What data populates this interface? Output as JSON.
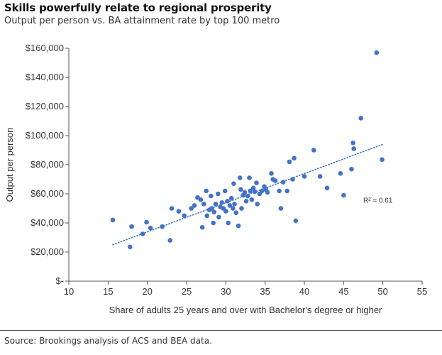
{
  "header": {
    "title": "Skills powerfully relate to regional prosperity",
    "subtitle": "Output per person vs. BA attainment rate by top 100 metro"
  },
  "footer": {
    "source": "Source: Brookings analysis of ACS and BEA data."
  },
  "colors": {
    "points": "#4472c4",
    "trendline": "#4472c4",
    "axis": "#555555"
  },
  "chart_data": {
    "type": "scatter",
    "xlabel": "Share of adults 25 years and over with Bachelor's degree or higher",
    "ylabel": "Output per person",
    "xlim": [
      10,
      55
    ],
    "ylim": [
      0,
      160000
    ],
    "x_ticks": [
      10,
      15,
      20,
      25,
      30,
      35,
      40,
      45,
      50,
      55
    ],
    "x_tick_labels": [
      "10",
      "15",
      "20",
      "25",
      "30",
      "35",
      "40",
      "45",
      "50",
      "55"
    ],
    "y_ticks": [
      0,
      20000,
      40000,
      60000,
      80000,
      100000,
      120000,
      140000,
      160000
    ],
    "y_tick_labels": [
      "$-",
      "$20,000",
      "$40,000",
      "$60,000",
      "$80,000",
      "$100,000",
      "$120,000",
      "$140,000",
      "$160,000"
    ],
    "grid": false,
    "trendline": {
      "type": "linear",
      "x": [
        15.6,
        50
      ],
      "y": [
        25000,
        94000
      ],
      "style": "dotted"
    },
    "annotations": [
      {
        "text": "R² = 0.61",
        "x": 47.5,
        "y": 54000
      }
    ],
    "points": [
      [
        15.6,
        42000
      ],
      [
        17.8,
        23500
      ],
      [
        18.0,
        37500
      ],
      [
        19.4,
        32500
      ],
      [
        19.9,
        40500
      ],
      [
        20.4,
        36500
      ],
      [
        21.9,
        37500
      ],
      [
        22.9,
        28000
      ],
      [
        23.1,
        50000
      ],
      [
        24.0,
        48000
      ],
      [
        24.7,
        45000
      ],
      [
        25.6,
        50000
      ],
      [
        26.0,
        52000
      ],
      [
        26.4,
        57500
      ],
      [
        26.8,
        56000
      ],
      [
        27.0,
        37000
      ],
      [
        27.2,
        53000
      ],
      [
        27.5,
        62000
      ],
      [
        27.6,
        45000
      ],
      [
        27.9,
        49000
      ],
      [
        28.1,
        58500
      ],
      [
        28.2,
        50000
      ],
      [
        28.4,
        40000
      ],
      [
        28.5,
        47500
      ],
      [
        28.7,
        53000
      ],
      [
        29.0,
        60000
      ],
      [
        29.1,
        44000
      ],
      [
        29.3,
        51000
      ],
      [
        29.5,
        54000
      ],
      [
        29.7,
        50000
      ],
      [
        29.9,
        62000
      ],
      [
        30.0,
        48000
      ],
      [
        30.2,
        55000
      ],
      [
        30.3,
        40000
      ],
      [
        30.5,
        52000
      ],
      [
        30.7,
        57000
      ],
      [
        30.9,
        50000
      ],
      [
        31.0,
        67000
      ],
      [
        31.1,
        53000
      ],
      [
        31.3,
        47000
      ],
      [
        31.6,
        38000
      ],
      [
        31.8,
        71000
      ],
      [
        31.9,
        63000
      ],
      [
        32.0,
        50000
      ],
      [
        32.2,
        59000
      ],
      [
        32.4,
        61000
      ],
      [
        32.6,
        55000
      ],
      [
        32.8,
        58500
      ],
      [
        33.0,
        71000
      ],
      [
        33.1,
        62000
      ],
      [
        33.3,
        56000
      ],
      [
        33.5,
        64000
      ],
      [
        33.7,
        61500
      ],
      [
        33.9,
        67500
      ],
      [
        34.0,
        53000
      ],
      [
        34.3,
        60000
      ],
      [
        34.6,
        62000
      ],
      [
        34.9,
        65000
      ],
      [
        35.1,
        63000
      ],
      [
        35.3,
        61000
      ],
      [
        35.8,
        74000
      ],
      [
        36.0,
        70000
      ],
      [
        36.3,
        69000
      ],
      [
        36.8,
        62000
      ],
      [
        37.0,
        50000
      ],
      [
        37.3,
        68000
      ],
      [
        37.8,
        62000
      ],
      [
        38.1,
        82000
      ],
      [
        38.5,
        70000
      ],
      [
        38.7,
        84500
      ],
      [
        38.9,
        41500
      ],
      [
        40.0,
        72000
      ],
      [
        41.2,
        90000
      ],
      [
        42.0,
        72000
      ],
      [
        42.9,
        64000
      ],
      [
        44.6,
        74000
      ],
      [
        45.0,
        59000
      ],
      [
        46.0,
        77000
      ],
      [
        46.2,
        95000
      ],
      [
        46.3,
        91000
      ],
      [
        47.2,
        112000
      ],
      [
        49.2,
        157000
      ],
      [
        49.9,
        83500
      ]
    ]
  }
}
